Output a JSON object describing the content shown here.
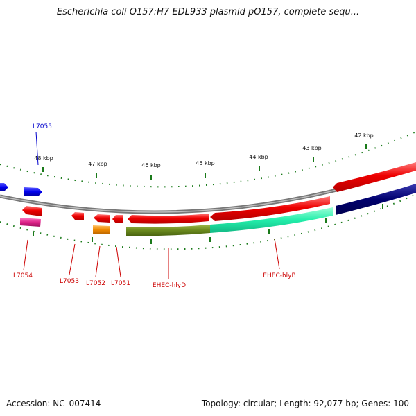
{
  "title": "Escherichia coli O157:H7 EDL933 plasmid pO157, complete sequ...",
  "footer": {
    "accession": "Accession: NC_007414",
    "summary": "Topology: circular; Length: 92,077 bp; Genes: 100"
  },
  "colors": {
    "backbone": "#8a8a8a",
    "tick": "#1a7a1a",
    "label_red": "#cc0000",
    "label_blue": "#0000cc"
  },
  "ticks": [
    "48 kbp",
    "47 kbp",
    "46 kbp",
    "45 kbp",
    "44 kbp",
    "43 kbp",
    "42 kbp"
  ],
  "genes": [
    {
      "name": "L7055",
      "color": "#0000cc",
      "label_color": "#0000cc"
    },
    {
      "name": "L7054",
      "color": "#dd2288",
      "label_color": "#cc0000"
    },
    {
      "name": "L7053",
      "color": "#ee0000",
      "label_color": "#cc0000"
    },
    {
      "name": "L7052",
      "color": "#ee8800",
      "label_color": "#cc0000"
    },
    {
      "name": "L7051",
      "color": "#ee0000",
      "label_color": "#cc0000"
    },
    {
      "name": "EHEC-hlyD",
      "color": "#6b8a1e",
      "label_color": "#cc0000"
    },
    {
      "name": "EHEC-hlyB",
      "color": "#22eeaa",
      "label_color": "#cc0000"
    }
  ]
}
